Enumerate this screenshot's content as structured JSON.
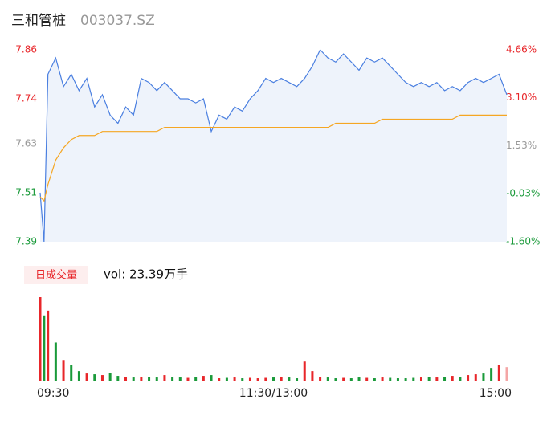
{
  "chart_data": {
    "type": "intraday",
    "title": "三和管桩",
    "subtitle": "003037.SZ",
    "x": [
      0,
      2,
      4,
      8,
      12,
      16,
      20,
      24,
      28,
      32,
      36,
      40,
      44,
      48,
      52,
      56,
      60,
      64,
      68,
      72,
      76,
      80,
      84,
      88,
      92,
      96,
      100,
      104,
      108,
      112,
      116,
      120,
      124,
      128,
      132,
      136,
      140,
      144,
      148,
      152,
      156,
      160,
      164,
      168,
      172,
      176,
      180,
      184,
      188,
      192,
      196,
      200,
      204,
      208,
      212,
      216,
      220,
      224,
      228,
      232,
      236,
      240
    ],
    "xlim": [
      0,
      240
    ],
    "xticks": [
      {
        "value": 0,
        "label": "09:30"
      },
      {
        "value": 120,
        "label": "11:30/13:00"
      },
      {
        "value": 240,
        "label": "15:00"
      }
    ],
    "ylim": [
      7.39,
      7.86
    ],
    "yticks": [
      7.39,
      7.51,
      7.63,
      7.74,
      7.86
    ],
    "ytick_colors": [
      "#1a9a3a",
      "#1a9a3a",
      "#999999",
      "#e8262a",
      "#e8262a"
    ],
    "y2lim": [
      -1.6,
      4.66
    ],
    "y2ticks": [
      {
        "value": -1.6,
        "label": "-1.60%"
      },
      {
        "value": -0.03,
        "label": "-0.03%"
      },
      {
        "value": 1.53,
        "label": "1.53%"
      },
      {
        "value": 3.1,
        "label": "3.10%"
      },
      {
        "value": 4.66,
        "label": "4.66%"
      }
    ],
    "series": [
      {
        "name": "price",
        "color": "#4a7fe0",
        "values": [
          7.51,
          7.39,
          7.8,
          7.84,
          7.77,
          7.8,
          7.76,
          7.79,
          7.72,
          7.75,
          7.7,
          7.68,
          7.72,
          7.7,
          7.79,
          7.78,
          7.76,
          7.78,
          7.76,
          7.74,
          7.74,
          7.73,
          7.74,
          7.66,
          7.7,
          7.69,
          7.72,
          7.71,
          7.74,
          7.76,
          7.79,
          7.78,
          7.79,
          7.78,
          7.77,
          7.79,
          7.82,
          7.86,
          7.84,
          7.83,
          7.85,
          7.83,
          7.81,
          7.84,
          7.83,
          7.84,
          7.82,
          7.8,
          7.78,
          7.77,
          7.78,
          7.77,
          7.78,
          7.76,
          7.77,
          7.76,
          7.78,
          7.79,
          7.78,
          7.79,
          7.8,
          7.75
        ]
      },
      {
        "name": "average",
        "color": "#f5a623",
        "values": [
          7.5,
          7.49,
          7.53,
          7.59,
          7.62,
          7.64,
          7.65,
          7.65,
          7.65,
          7.66,
          7.66,
          7.66,
          7.66,
          7.66,
          7.66,
          7.66,
          7.66,
          7.67,
          7.67,
          7.67,
          7.67,
          7.67,
          7.67,
          7.67,
          7.67,
          7.67,
          7.67,
          7.67,
          7.67,
          7.67,
          7.67,
          7.67,
          7.67,
          7.67,
          7.67,
          7.67,
          7.67,
          7.67,
          7.67,
          7.68,
          7.68,
          7.68,
          7.68,
          7.68,
          7.68,
          7.69,
          7.69,
          7.69,
          7.69,
          7.69,
          7.69,
          7.69,
          7.69,
          7.69,
          7.69,
          7.7,
          7.7,
          7.7,
          7.7,
          7.7,
          7.7,
          7.7
        ]
      }
    ],
    "volume": {
      "legend": "日成交量",
      "label": "vol: 23.39万手",
      "values": [
        10500,
        8200,
        8800,
        4800,
        2600,
        2000,
        1200,
        900,
        800,
        700,
        1000,
        600,
        500,
        400,
        500,
        450,
        400,
        700,
        500,
        400,
        350,
        500,
        600,
        700,
        300,
        350,
        400,
        300,
        350,
        300,
        350,
        400,
        500,
        400,
        300,
        2400,
        1200,
        500,
        400,
        300,
        350,
        300,
        400,
        350,
        300,
        400,
        350,
        300,
        300,
        350,
        400,
        450,
        400,
        500,
        600,
        500,
        700,
        800,
        900,
        1600,
        2000,
        1700
      ],
      "colors": [
        "#e8262a",
        "#1a9a3a",
        "#e8262a",
        "#1a9a3a",
        "#e8262a",
        "#1a9a3a",
        "#1a9a3a",
        "#e8262a",
        "#1a9a3a",
        "#e8262a",
        "#1a9a3a",
        "#1a9a3a",
        "#e8262a",
        "#1a9a3a",
        "#e8262a",
        "#1a9a3a",
        "#1a9a3a",
        "#e8262a",
        "#1a9a3a",
        "#1a9a3a",
        "#e8262a",
        "#1a9a3a",
        "#e8262a",
        "#1a9a3a",
        "#e8262a",
        "#1a9a3a",
        "#e8262a",
        "#1a9a3a",
        "#e8262a",
        "#e8262a",
        "#e8262a",
        "#1a9a3a",
        "#e8262a",
        "#1a9a3a",
        "#1a9a3a",
        "#e8262a",
        "#e8262a",
        "#e8262a",
        "#1a9a3a",
        "#1a9a3a",
        "#e8262a",
        "#1a9a3a",
        "#1a9a3a",
        "#e8262a",
        "#1a9a3a",
        "#e8262a",
        "#1a9a3a",
        "#1a9a3a",
        "#1a9a3a",
        "#1a9a3a",
        "#e8262a",
        "#1a9a3a",
        "#e8262a",
        "#1a9a3a",
        "#e8262a",
        "#1a9a3a",
        "#e8262a",
        "#e8262a",
        "#1a9a3a",
        "#1a9a3a",
        "#e8262a",
        "#f4a6a6"
      ]
    }
  }
}
